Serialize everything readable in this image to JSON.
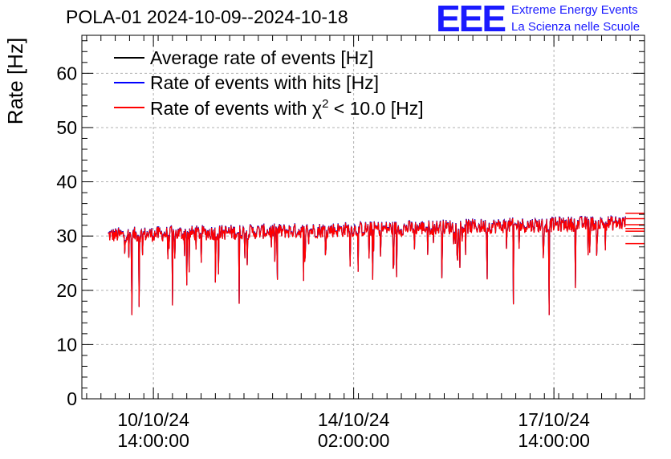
{
  "chart_data": {
    "type": "line",
    "title": "POLA-01 2024-10-09--2024-10-18",
    "xlabel": "",
    "ylabel": "Rate [Hz]",
    "ylim": [
      0,
      67
    ],
    "yticks": [
      0,
      10,
      20,
      30,
      40,
      50,
      60
    ],
    "grid": true,
    "legend_position": "top-left",
    "x_domain": [
      "2024-10-09 08:00",
      "2024-10-19 04:00"
    ],
    "xticks": [
      {
        "date": "10/10/24",
        "time": "14:00:00",
        "at": "2024-10-10 14:00"
      },
      {
        "date": "14/10/24",
        "time": "02:00:00",
        "at": "2024-10-14 02:00"
      },
      {
        "date": "17/10/24",
        "time": "14:00:00",
        "at": "2024-10-17 14:00"
      }
    ],
    "series": [
      {
        "name": "Average rate of events [Hz]",
        "color": "#000000",
        "x_start": "2024-10-09 19:00",
        "x_end": "2024-10-18 20:00",
        "start_value": 30.2,
        "end_value": 32.5,
        "noise": 1.4,
        "dips": [
          {
            "at": "2024-10-10 05:00",
            "value": 15.5
          },
          {
            "at": "2024-10-10 08:00",
            "value": 17.0
          },
          {
            "at": "2024-10-10 22:00",
            "value": 17.3
          },
          {
            "at": "2024-10-11 04:00",
            "value": 21.0
          },
          {
            "at": "2024-10-11 16:00",
            "value": 21.5
          },
          {
            "at": "2024-10-12 02:00",
            "value": 17.6
          },
          {
            "at": "2024-10-12 18:00",
            "value": 22.0
          },
          {
            "at": "2024-10-13 05:00",
            "value": 21.8
          },
          {
            "at": "2024-10-14 10:00",
            "value": 22.0
          },
          {
            "at": "2024-10-14 20:00",
            "value": 22.5
          },
          {
            "at": "2024-10-15 15:00",
            "value": 22.3
          },
          {
            "at": "2024-10-16 10:00",
            "value": 22.1
          },
          {
            "at": "2024-10-16 21:00",
            "value": 17.5
          },
          {
            "at": "2024-10-17 12:00",
            "value": 15.5
          },
          {
            "at": "2024-10-17 23:00",
            "value": 20.5
          },
          {
            "at": "2024-10-18 05:00",
            "value": 27.0
          }
        ]
      },
      {
        "name": "Rate of events with hits [Hz]",
        "color": "#0000ff",
        "same_as": "Average rate of events [Hz]",
        "offset": 0.0
      },
      {
        "name_prefix": "Rate of events with ",
        "name_symbol": "χ",
        "name_sup": "2",
        "name_suffix": " < 10.0 [Hz]",
        "name": "Rate of events with χ2 < 10.0 [Hz]",
        "color": "#ff0000",
        "same_as": "Average rate of events [Hz]",
        "offset": -0.1
      }
    ],
    "trailing_lines": [
      34.2,
      33.2,
      32.1,
      31.4,
      30.9,
      28.6
    ]
  },
  "logo": {
    "text": "EEE",
    "line1": "Extreme Energy Events",
    "line2": "La Scienza nelle Scuole",
    "color": "#1a1aff"
  }
}
